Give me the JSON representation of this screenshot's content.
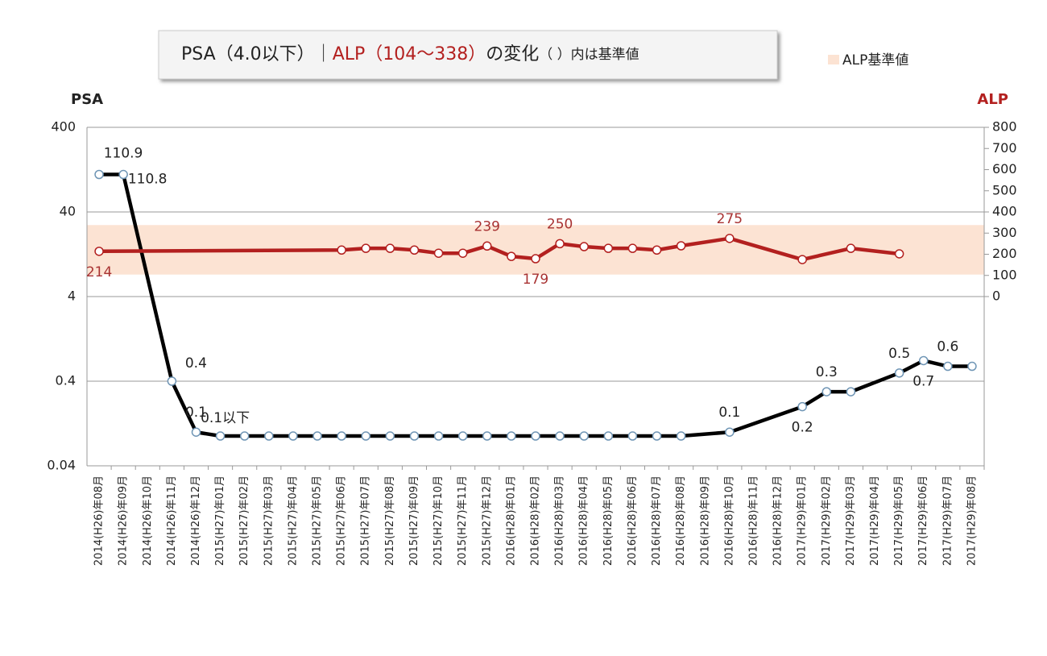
{
  "chart_data": {
    "type": "line",
    "title": [
      "PSA（4.0以下）｜",
      "ALP（104～338）",
      "の変化",
      "（ ）内は基準値"
    ],
    "y_label": "PSA",
    "y2_label": "ALP",
    "categories": [
      "2014(H26)年08月",
      "2014(H26)年09月",
      "2014(H26)年10月",
      "2014(H26)年11月",
      "2014(H26)年12月",
      "2015(H27)年01月",
      "2015(H27)年02月",
      "2015(H27)年03月",
      "2015(H27)年04月",
      "2015(H27)年05月",
      "2015(H27)年06月",
      "2015(H27)年07月",
      "2015(H27)年08月",
      "2015(H27)年09月",
      "2015(H27)年10月",
      "2015(H27)年11月",
      "2015(H27)年12月",
      "2016(H28)年01月",
      "2016(H28)年02月",
      "2016(H28)年03月",
      "2016(H28)年04月",
      "2016(H28)年05月",
      "2016(H28)年06月",
      "2016(H28)年07月",
      "2016(H28)年08月",
      "2016(H28)年09月",
      "2016(H28)年10月",
      "2016(H28)年11月",
      "2016(H28)年12月",
      "2017(H29)年01月",
      "2017(H29)年02月",
      "2017(H29)年03月",
      "2017(H29)年04月",
      "2017(H29)年05月",
      "2017(H29)年06月",
      "2017(H29)年07月",
      "2017(H29)年08月"
    ],
    "series": [
      {
        "name": "PSA",
        "color": "#000000",
        "axis": "y",
        "values": [
          110.9,
          110.8,
          null,
          0.4,
          0.1,
          0.09,
          0.09,
          0.09,
          0.09,
          0.09,
          0.09,
          0.09,
          0.09,
          0.09,
          0.09,
          0.09,
          0.09,
          0.09,
          0.09,
          0.09,
          0.09,
          0.09,
          0.09,
          0.09,
          0.09,
          null,
          0.1,
          null,
          null,
          0.2,
          0.3,
          0.3,
          null,
          0.5,
          0.7,
          0.6,
          0.6
        ],
        "value_labels": [
          "110.9",
          "110.8",
          null,
          "0.4",
          "0.1",
          "0.1以下",
          null,
          null,
          null,
          null,
          null,
          null,
          null,
          null,
          null,
          null,
          null,
          null,
          null,
          null,
          null,
          null,
          null,
          null,
          null,
          null,
          "0.1",
          null,
          null,
          "0.2",
          "0.3",
          null,
          null,
          "0.5",
          "0.7",
          "0.6",
          null
        ]
      },
      {
        "name": "ALP",
        "color": "#b3201f",
        "axis": "y2",
        "values": [
          214,
          null,
          null,
          null,
          null,
          null,
          null,
          null,
          null,
          null,
          220,
          228,
          228,
          220,
          205,
          205,
          239,
          190,
          179,
          250,
          236,
          228,
          228,
          220,
          240,
          null,
          275,
          null,
          null,
          175,
          null,
          228,
          null,
          202,
          null,
          null,
          null
        ],
        "value_labels": [
          "214",
          null,
          null,
          null,
          null,
          null,
          null,
          null,
          null,
          null,
          null,
          null,
          null,
          null,
          null,
          null,
          "239",
          null,
          "179",
          "250",
          null,
          null,
          null,
          null,
          null,
          null,
          "275",
          null,
          null,
          null,
          null,
          null,
          null,
          null,
          null,
          null,
          null
        ]
      }
    ],
    "band": {
      "name": "ALP基準値",
      "range": [
        104,
        338
      ],
      "color": "#fce3d3",
      "axis": "y2"
    },
    "ylog": true,
    "ylim": [
      0.04,
      400
    ],
    "yticks": [
      0.04,
      0.4,
      4,
      40,
      400
    ],
    "y2lim": [
      -800,
      800
    ],
    "y2ticks": [
      0,
      100,
      200,
      300,
      400,
      500,
      600,
      700,
      800
    ],
    "connect_gaps": true,
    "grid": true,
    "legend": "top-right"
  }
}
